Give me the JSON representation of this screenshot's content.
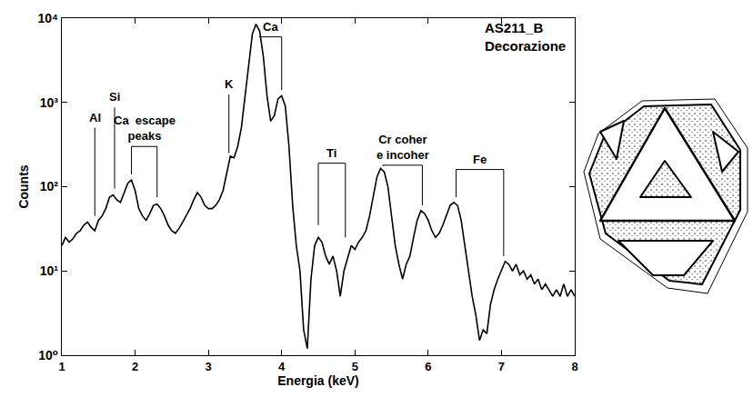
{
  "chart_data": {
    "type": "line",
    "title": "AS211_B",
    "subtitle": "Decorazione",
    "x_label": "Energia (keV)",
    "y_label": "Counts",
    "color": "#000000",
    "log": "y",
    "grid": false,
    "xlim": [
      1,
      8
    ],
    "ylim": [
      1,
      10000
    ],
    "xticks": [
      1,
      2,
      3,
      4,
      5,
      6,
      7,
      8
    ],
    "yticks": [
      {
        "value": 1,
        "label": "10⁰"
      },
      {
        "value": 10,
        "label": "10¹"
      },
      {
        "value": 100,
        "label": "10²"
      },
      {
        "value": 1000,
        "label": "10³"
      },
      {
        "value": 10000,
        "label": "10⁴"
      }
    ],
    "x": [
      1.0,
      1.05,
      1.1,
      1.15,
      1.2,
      1.25,
      1.3,
      1.35,
      1.4,
      1.45,
      1.5,
      1.55,
      1.6,
      1.65,
      1.7,
      1.75,
      1.8,
      1.85,
      1.9,
      1.95,
      2.0,
      2.05,
      2.1,
      2.15,
      2.2,
      2.25,
      2.3,
      2.35,
      2.4,
      2.45,
      2.5,
      2.55,
      2.6,
      2.65,
      2.7,
      2.75,
      2.8,
      2.85,
      2.9,
      2.95,
      3.0,
      3.05,
      3.1,
      3.15,
      3.2,
      3.25,
      3.3,
      3.35,
      3.4,
      3.45,
      3.5,
      3.55,
      3.6,
      3.65,
      3.7,
      3.75,
      3.8,
      3.85,
      3.9,
      3.95,
      4.0,
      4.05,
      4.1,
      4.15,
      4.2,
      4.25,
      4.3,
      4.35,
      4.4,
      4.45,
      4.5,
      4.55,
      4.6,
      4.65,
      4.7,
      4.75,
      4.8,
      4.85,
      4.9,
      4.95,
      5.0,
      5.05,
      5.1,
      5.15,
      5.2,
      5.25,
      5.3,
      5.35,
      5.4,
      5.45,
      5.5,
      5.55,
      5.6,
      5.65,
      5.7,
      5.75,
      5.8,
      5.85,
      5.9,
      5.95,
      6.0,
      6.05,
      6.1,
      6.15,
      6.2,
      6.25,
      6.3,
      6.35,
      6.4,
      6.45,
      6.5,
      6.55,
      6.6,
      6.65,
      6.7,
      6.75,
      6.8,
      6.85,
      6.9,
      6.95,
      7.0,
      7.05,
      7.1,
      7.15,
      7.2,
      7.25,
      7.3,
      7.35,
      7.4,
      7.45,
      7.5,
      7.55,
      7.6,
      7.65,
      7.7,
      7.75,
      7.8,
      7.85,
      7.9,
      7.95,
      8.0
    ],
    "values": [
      20,
      25,
      22,
      24,
      28,
      30,
      35,
      38,
      33,
      30,
      40,
      45,
      55,
      75,
      80,
      70,
      65,
      85,
      110,
      120,
      90,
      55,
      45,
      40,
      48,
      60,
      62,
      55,
      45,
      35,
      30,
      28,
      32,
      38,
      45,
      55,
      70,
      85,
      75,
      60,
      55,
      55,
      60,
      70,
      90,
      140,
      230,
      220,
      300,
      500,
      1200,
      3000,
      6500,
      8500,
      7000,
      3500,
      1200,
      600,
      700,
      1100,
      1200,
      900,
      300,
      60,
      20,
      10,
      2,
      1.2,
      8,
      20,
      25,
      22,
      15,
      12,
      15,
      10,
      5,
      10,
      14,
      20,
      18,
      22,
      25,
      30,
      45,
      80,
      130,
      165,
      150,
      100,
      45,
      20,
      12,
      8,
      12,
      15,
      25,
      40,
      52,
      48,
      40,
      30,
      25,
      28,
      35,
      45,
      60,
      65,
      60,
      40,
      20,
      10,
      5,
      3,
      1.5,
      2,
      1.8,
      4,
      6,
      8,
      10,
      13,
      12,
      10,
      12,
      9,
      10,
      8,
      9,
      7,
      8,
      6,
      7,
      6,
      5,
      6,
      5,
      7,
      5,
      6,
      5
    ],
    "annotations": [
      {
        "text": [
          "Al"
        ],
        "x": [
          1.45
        ],
        "y": 500,
        "y_end": [
          45
        ]
      },
      {
        "text": [
          "Si"
        ],
        "x": [
          1.72
        ],
        "y": 870,
        "y_end": [
          95
        ]
      },
      {
        "text": [
          "Ca  escape",
          "peaks"
        ],
        "x": [
          1.95,
          2.3
        ],
        "y": 300,
        "y_end": [
          140,
          75
        ]
      },
      {
        "text": [
          "K"
        ],
        "x": [
          3.28
        ],
        "y": 1240,
        "y_end": [
          250
        ]
      },
      {
        "text": [
          "Ca"
        ],
        "x": [
          3.69,
          4.0
        ],
        "y": 6000,
        "y_end": [
          6000,
          1400
        ]
      },
      {
        "text": [
          "Ti"
        ],
        "x": [
          4.5,
          4.87
        ],
        "y": 190,
        "y_end": [
          35,
          25
        ]
      },
      {
        "text": [
          "Cr coher",
          "e incoher"
        ],
        "x": [
          5.38,
          5.92
        ],
        "y": 180,
        "y_end": [
          175,
          60
        ]
      },
      {
        "text": [
          "Fe"
        ],
        "x": [
          6.38,
          7.03
        ],
        "y": 160,
        "y_end": [
          75,
          15
        ]
      }
    ]
  }
}
